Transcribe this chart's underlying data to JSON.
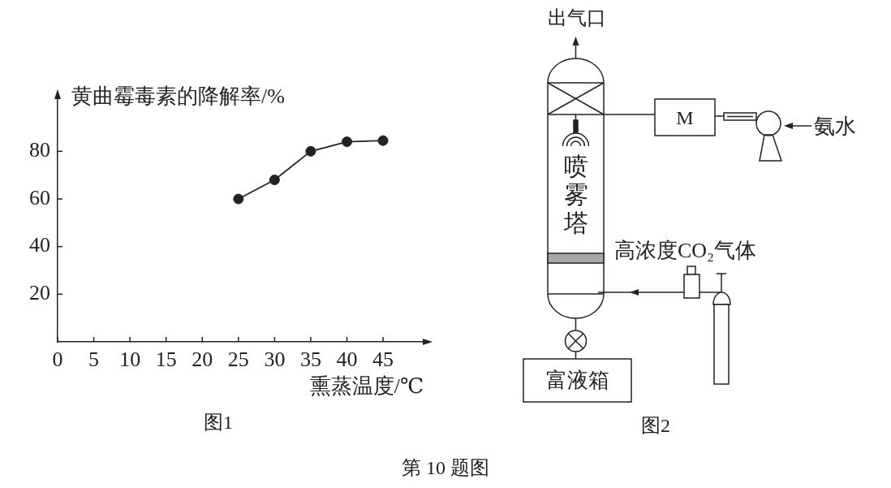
{
  "chart_data": [
    {
      "type": "line",
      "xlabel": "熏蒸温度/℃",
      "ylabel": "黄曲霉毒素的降解率/%",
      "annotations": [
        "图1",
        "第 10 题图"
      ],
      "x": [
        25,
        30,
        35,
        40,
        45
      ],
      "series": [
        {
          "color": "#222222",
          "values": [
            60,
            68,
            80,
            84,
            84.5
          ]
        }
      ],
      "xlim": [
        0,
        51.5
      ],
      "ylim": [
        0,
        105
      ],
      "xticks": [
        0,
        5,
        10,
        15,
        20,
        25,
        30,
        35,
        40,
        45
      ],
      "yticks": [
        20,
        40,
        60,
        80
      ],
      "marker": "circle",
      "line_style": "solid"
    },
    {
      "type": "other",
      "annotations": [
        "出气口",
        "M",
        "氨水",
        "喷雾塔",
        "高浓度CO₂气体",
        "富液箱",
        "图2"
      ]
    }
  ]
}
